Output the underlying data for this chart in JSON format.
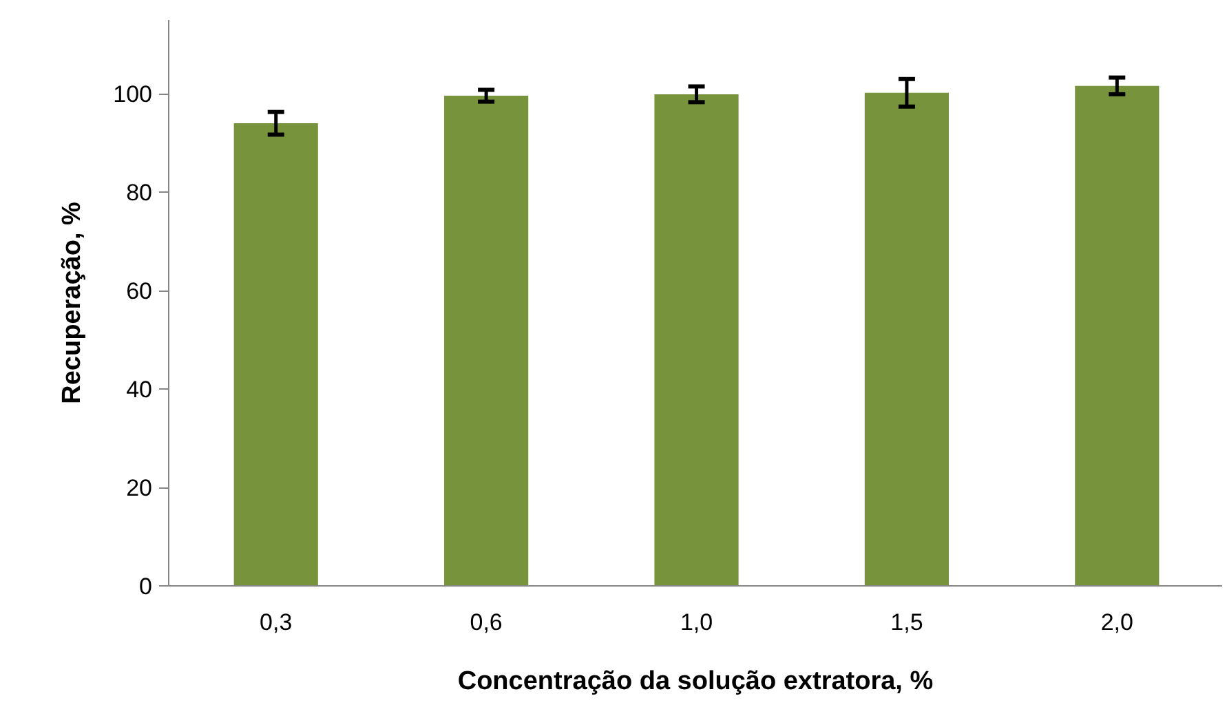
{
  "chart_data": {
    "type": "bar",
    "xlabel": "Concentração da solução extratora, %",
    "ylabel": "Recuperação, %",
    "categories": [
      "0,3",
      "0,6",
      "1,0",
      "1,5",
      "2,0"
    ],
    "values": [
      94.0,
      99.6,
      99.9,
      100.2,
      101.6
    ],
    "errors": [
      2.3,
      1.2,
      1.6,
      2.8,
      1.7
    ],
    "color": "#77933c",
    "ylim": [
      0,
      115
    ],
    "yticks": [
      0,
      20,
      40,
      60,
      80,
      100
    ],
    "grid": false
  }
}
